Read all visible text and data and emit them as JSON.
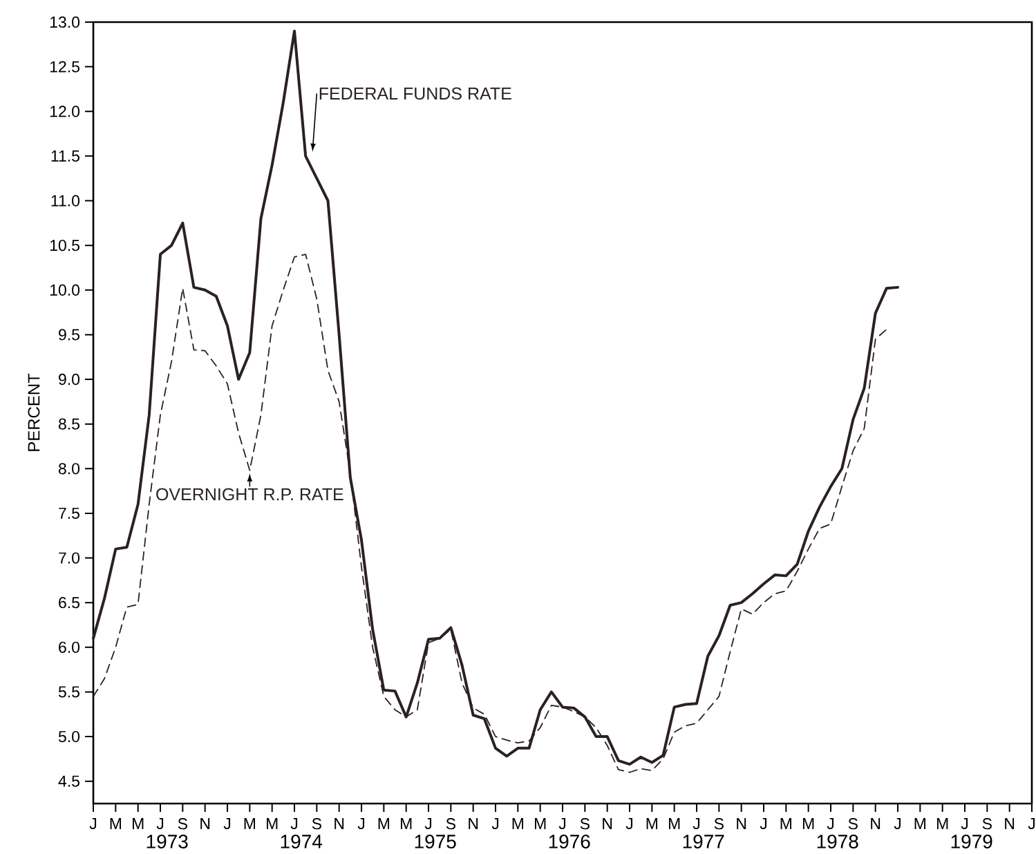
{
  "chart_data": {
    "type": "line",
    "ylabel": "PERCENT",
    "categories": [
      "J",
      null,
      "M",
      null,
      "M",
      null,
      "J",
      null,
      "S",
      null,
      "N",
      null,
      "J",
      null,
      "M",
      null,
      "M",
      null,
      "J",
      null,
      "S",
      null,
      "N",
      null,
      "J",
      null,
      "M",
      null,
      "M",
      null,
      "J",
      null,
      "S",
      null,
      "N",
      null,
      "J",
      null,
      "M",
      null,
      "M",
      null,
      "J",
      null,
      "S",
      null,
      "N",
      null,
      "J",
      null,
      "M",
      null,
      "M",
      null,
      "J",
      null,
      "S",
      null,
      "N",
      null,
      "J",
      null,
      "M",
      null,
      "M",
      null,
      "J",
      null,
      "S",
      null,
      "N",
      null,
      "J",
      null,
      "M",
      null,
      "M",
      null,
      "J",
      null,
      "S",
      null,
      "N",
      null,
      "J"
    ],
    "series": [
      {
        "name": "FEDERAL FUNDS RATE",
        "color": "#2b2121",
        "line_style": "solid",
        "values": [
          6.1,
          6.55,
          7.1,
          7.12,
          7.6,
          8.6,
          10.4,
          10.5,
          10.75,
          10.03,
          10.0,
          9.93,
          9.6,
          9.0,
          9.3,
          10.8,
          11.4,
          12.1,
          12.9,
          11.5,
          11.25,
          11.0,
          9.5,
          7.9,
          7.2,
          6.2,
          5.52,
          5.51,
          5.22,
          5.6,
          6.09,
          6.1,
          6.22,
          5.8,
          5.24,
          5.2,
          4.87,
          4.78,
          4.87,
          4.87,
          5.3,
          5.5,
          5.33,
          5.32,
          5.22,
          5.0,
          5.0,
          4.73,
          4.69,
          4.77,
          4.71,
          4.79,
          5.33,
          5.36,
          5.37,
          5.9,
          6.13,
          6.47,
          6.5,
          6.6,
          6.71,
          6.81,
          6.8,
          6.93,
          7.3,
          7.57,
          7.8,
          8.0,
          8.55,
          8.9,
          9.74,
          10.02,
          10.03,
          null,
          null,
          null,
          null,
          null,
          null,
          null,
          null,
          null,
          null,
          null,
          null
        ]
      },
      {
        "name": "OVERNIGHT R.P. RATE",
        "color": "#2b2121",
        "line_style": "dashed",
        "values": [
          5.45,
          5.65,
          6.0,
          6.45,
          6.48,
          7.6,
          8.6,
          9.2,
          10.02,
          9.33,
          9.32,
          9.15,
          8.95,
          8.4,
          7.98,
          8.6,
          9.6,
          10.0,
          10.37,
          10.4,
          9.9,
          9.1,
          8.75,
          7.95,
          6.9,
          6.0,
          5.45,
          5.3,
          5.22,
          5.3,
          6.05,
          6.1,
          6.2,
          5.6,
          5.32,
          5.25,
          5.0,
          4.96,
          4.93,
          4.95,
          5.1,
          5.35,
          5.33,
          5.28,
          5.22,
          5.1,
          4.9,
          4.63,
          4.6,
          4.64,
          4.62,
          4.75,
          5.05,
          5.12,
          5.15,
          5.3,
          5.45,
          5.95,
          6.43,
          6.37,
          6.5,
          6.6,
          6.63,
          6.85,
          7.1,
          7.33,
          7.38,
          7.8,
          8.2,
          8.45,
          9.45,
          9.56,
          null,
          null,
          null,
          null,
          null,
          null,
          null,
          null,
          null,
          null,
          null,
          null,
          null
        ]
      }
    ],
    "ylim": [
      4.25,
      13.0
    ],
    "yticks": [
      4.5,
      {
        "value": 5,
        "label": "5.0"
      },
      5.5,
      {
        "value": 6,
        "label": "6.0"
      },
      6.5,
      {
        "value": 7,
        "label": "7.0"
      },
      7.5,
      {
        "value": 8,
        "label": "8.0"
      },
      8.5,
      {
        "value": 9,
        "label": "9.0"
      },
      9.5,
      {
        "value": 10,
        "label": "10.0"
      },
      10.5,
      {
        "value": 11,
        "label": "11.0"
      },
      11.5,
      {
        "value": 12,
        "label": "12.0"
      },
      12.5,
      {
        "value": 13,
        "label": "13.0"
      }
    ],
    "annotations": [
      "1973",
      "1974",
      "1975",
      "1976",
      "1977",
      "1978",
      "1979"
    ]
  }
}
